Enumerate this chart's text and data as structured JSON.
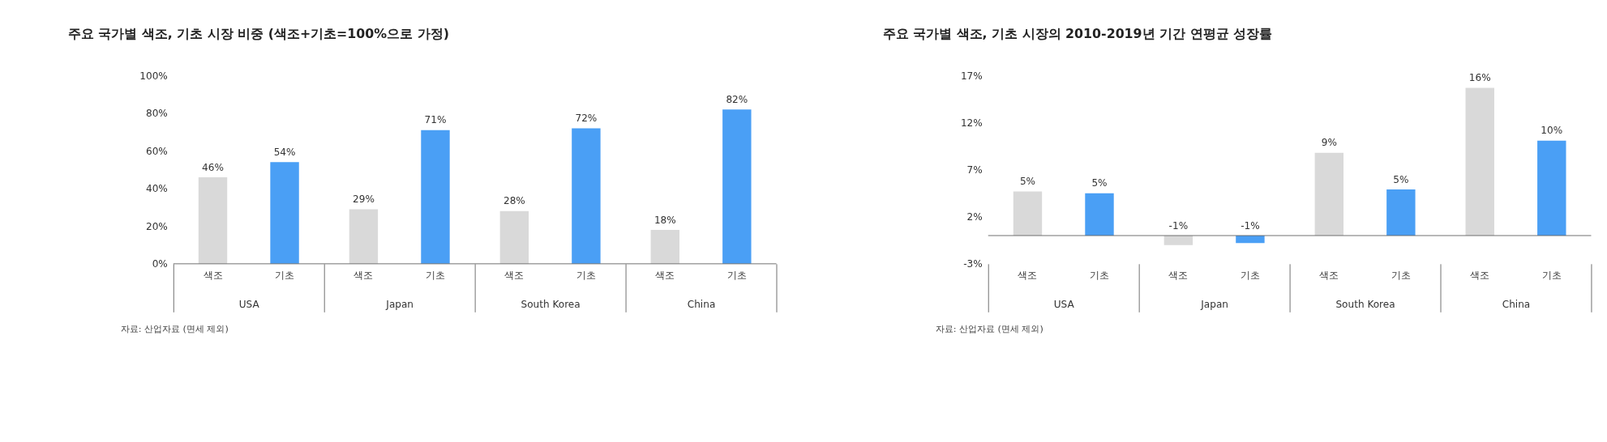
{
  "chart_data": [
    {
      "type": "bar",
      "title": "주요 국가별 색조, 기초 시장 비중 (색조+기초=100%으로 가정)",
      "categories": [
        "USA",
        "Japan",
        "South Korea",
        "China"
      ],
      "series": [
        {
          "name": "색조",
          "color": "#d9d9d9",
          "values": [
            46,
            29,
            28,
            18
          ],
          "value_labels": [
            "46%",
            "29%",
            "28%",
            "18%"
          ]
        },
        {
          "name": "기초",
          "color": "#4a9ff5",
          "values": [
            54,
            71,
            72,
            82
          ],
          "value_labels": [
            "54%",
            "71%",
            "72%",
            "82%"
          ]
        }
      ],
      "ylim": [
        0,
        100
      ],
      "yticks": [
        {
          "value": 0,
          "label": "0%"
        },
        {
          "value": 20,
          "label": "20%"
        },
        {
          "value": 40,
          "label": "40%"
        },
        {
          "value": 60,
          "label": "60%"
        },
        {
          "value": 80,
          "label": "80%"
        },
        {
          "value": 100,
          "label": "100%"
        }
      ],
      "grid": false,
      "legend": false,
      "annotations": [
        "자료: 산업자료 (면세 제외)"
      ]
    },
    {
      "type": "bar",
      "title": "주요 국가별 색조, 기초 시장의 2010-2019년 기간 연평균 성장률",
      "categories": [
        "USA",
        "Japan",
        "South Korea",
        "China"
      ],
      "series": [
        {
          "name": "색조",
          "color": "#d9d9d9",
          "values": [
            4.7,
            -1.0,
            8.8,
            15.7
          ],
          "value_labels": [
            "5%",
            "-1%",
            "9%",
            "16%"
          ]
        },
        {
          "name": "기초",
          "color": "#4a9ff5",
          "values": [
            4.5,
            -0.8,
            4.9,
            10.1
          ],
          "value_labels": [
            "5%",
            "-1%",
            "5%",
            "10%"
          ]
        }
      ],
      "ylim": [
        -3,
        17
      ],
      "yticks": [
        {
          "value": -3,
          "label": "-3%"
        },
        {
          "value": 2,
          "label": "2%"
        },
        {
          "value": 7,
          "label": "7%"
        },
        {
          "value": 12,
          "label": "12%"
        },
        {
          "value": 17,
          "label": "17%"
        }
      ],
      "grid": false,
      "legend": false,
      "annotations": [
        "자료: 산업자료 (면세 제외)"
      ]
    }
  ]
}
